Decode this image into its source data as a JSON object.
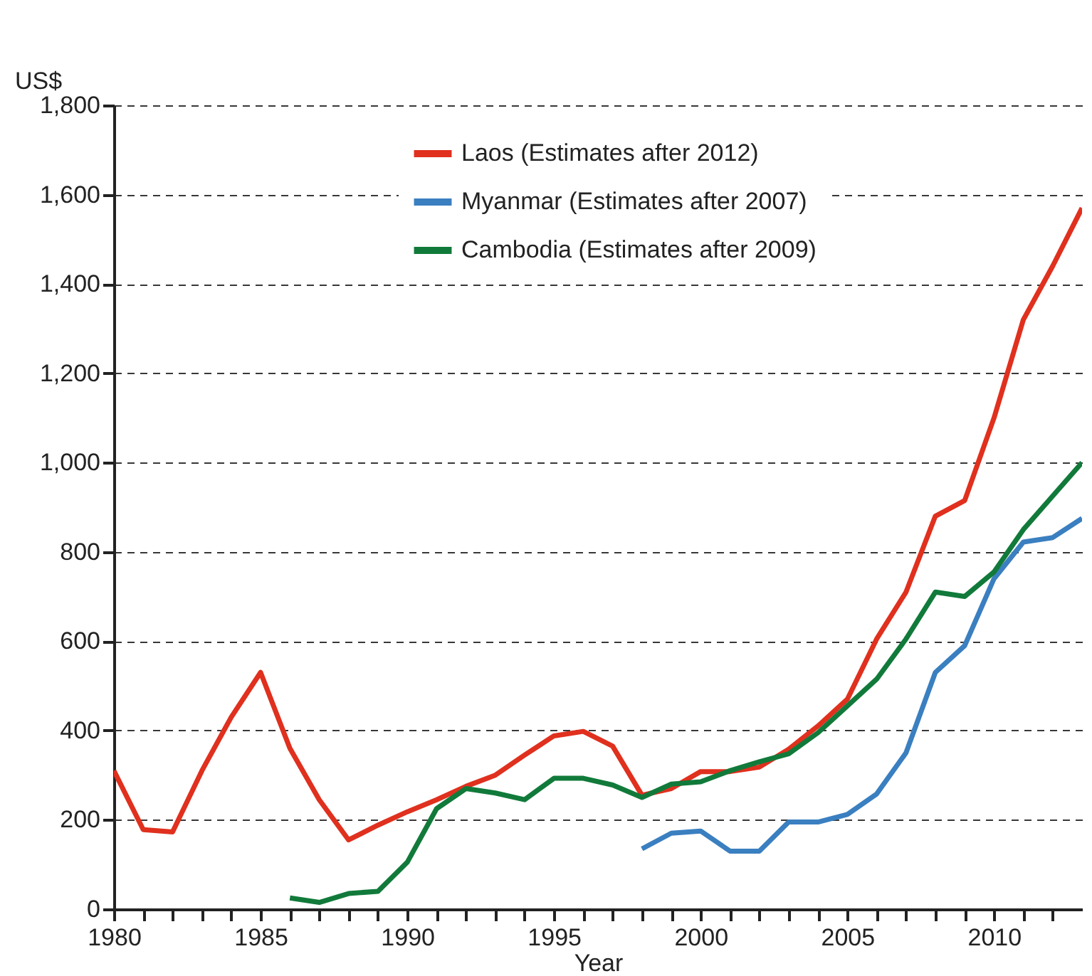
{
  "chart_data": {
    "type": "line",
    "xlabel": "Year",
    "ylabel": "US$",
    "xlim": [
      1980,
      2013
    ],
    "xticks": [
      1980,
      {
        "value": 1981,
        "label": null
      },
      {
        "value": 1982,
        "label": null
      },
      {
        "value": 1983,
        "label": null
      },
      {
        "value": 1984,
        "label": null
      },
      1985,
      {
        "value": 1986,
        "label": null
      },
      {
        "value": 1987,
        "label": null
      },
      {
        "value": 1988,
        "label": null
      },
      {
        "value": 1989,
        "label": null
      },
      1990,
      {
        "value": 1991,
        "label": null
      },
      {
        "value": 1992,
        "label": null
      },
      {
        "value": 1993,
        "label": null
      },
      {
        "value": 1994,
        "label": null
      },
      1995,
      {
        "value": 1996,
        "label": null
      },
      {
        "value": 1997,
        "label": null
      },
      {
        "value": 1998,
        "label": null
      },
      {
        "value": 1999,
        "label": null
      },
      2000,
      {
        "value": 2001,
        "label": null
      },
      {
        "value": 2002,
        "label": null
      },
      {
        "value": 2003,
        "label": null
      },
      {
        "value": 2004,
        "label": null
      },
      2005,
      {
        "value": 2006,
        "label": null
      },
      {
        "value": 2007,
        "label": null
      },
      {
        "value": 2008,
        "label": null
      },
      {
        "value": 2009,
        "label": null
      },
      2010,
      {
        "value": 2011,
        "label": null
      },
      {
        "value": 2012,
        "label": null
      }
    ],
    "ylim": [
      0,
      1800
    ],
    "yticks": [
      {
        "value": 0,
        "label": "0"
      },
      {
        "value": 200,
        "label": "200"
      },
      {
        "value": 400,
        "label": "400"
      },
      {
        "value": 600,
        "label": "600"
      },
      {
        "value": 800,
        "label": "800"
      },
      {
        "value": 1000,
        "label": "1,000"
      },
      {
        "value": 1200,
        "label": "1,200"
      },
      {
        "value": 1400,
        "label": "1,400"
      },
      {
        "value": 1600,
        "label": "1,600"
      },
      {
        "value": 1800,
        "label": "1,800"
      }
    ],
    "grid": "y",
    "legend": "top right",
    "line_style": "solid",
    "marker": "none",
    "series": [
      {
        "name": "Laos (Estimates after 2012)",
        "color": "#e0301e",
        "x": [
          1980,
          1981,
          1982,
          1983,
          1984,
          1985,
          1986,
          1987,
          1988,
          1989,
          1990,
          1991,
          1992,
          1993,
          1994,
          1995,
          1996,
          1997,
          1998,
          1999,
          2000,
          2001,
          2002,
          2003,
          2004,
          2005,
          2006,
          2007,
          2008,
          2009,
          2010,
          2011,
          2012,
          2013
        ],
        "values": [
          310,
          178,
          173,
          310,
          430,
          530,
          360,
          245,
          155,
          188,
          218,
          245,
          275,
          300,
          345,
          388,
          398,
          365,
          255,
          270,
          308,
          308,
          318,
          358,
          410,
          470,
          605,
          710,
          880,
          915,
          1100,
          1320,
          1440,
          1570
        ]
      },
      {
        "name": "Myanmar (Estimates after 2007)",
        "color": "#3a7fc0",
        "x": [
          1998,
          1999,
          2000,
          2001,
          2002,
          2003,
          2004,
          2005,
          2006,
          2007,
          2008,
          2009,
          2010,
          2011,
          2012,
          2013
        ],
        "values": [
          135,
          170,
          175,
          130,
          130,
          195,
          195,
          212,
          258,
          350,
          530,
          590,
          740,
          822,
          832,
          875
        ]
      },
      {
        "name": "Cambodia (Estimates after 2009)",
        "color": "#117a3a",
        "x": [
          1986,
          1987,
          1988,
          1989,
          1990,
          1991,
          1992,
          1993,
          1994,
          1995,
          1996,
          1997,
          1998,
          1999,
          2000,
          2001,
          2002,
          2003,
          2004,
          2005,
          2006,
          2007,
          2008,
          2009,
          2010,
          2011,
          2012,
          2013
        ],
        "values": [
          25,
          15,
          35,
          40,
          105,
          225,
          270,
          260,
          245,
          293,
          293,
          278,
          250,
          280,
          285,
          310,
          330,
          348,
          395,
          455,
          515,
          605,
          710,
          700,
          755,
          850,
          925,
          1000
        ]
      }
    ]
  }
}
